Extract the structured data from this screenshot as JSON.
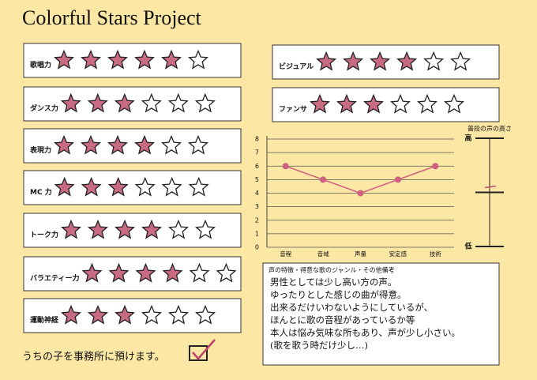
{
  "title": "Colorful Stars Project",
  "ratings_max": 6,
  "ratings": [
    {
      "label": "歌唱力",
      "value": 5
    },
    {
      "label": "ダンス力",
      "value": 3
    },
    {
      "label": "表現力",
      "value": 4
    },
    {
      "label": "MC 力",
      "value": 3
    },
    {
      "label": "トーク力",
      "value": 4
    },
    {
      "label": "バラエティー力",
      "value": 4
    },
    {
      "label": "運動神経",
      "value": 3
    },
    {
      "label": "ビジュアル",
      "value": 4
    },
    {
      "label": "ファンサ",
      "value": 3
    }
  ],
  "chart_data": {
    "type": "line",
    "categories": [
      "音程",
      "音域",
      "声量",
      "安定感",
      "技術"
    ],
    "values": [
      6,
      5,
      4,
      5,
      6
    ],
    "color": "#d0607f",
    "ylim": [
      0,
      8
    ],
    "yticks": [
      0,
      1,
      2,
      3,
      4,
      5,
      6,
      7,
      8
    ],
    "grid": true
  },
  "voice_pitch": {
    "title": "普段の声の高さ",
    "high": "高",
    "low": "低",
    "lim": [
      0,
      100
    ],
    "value": 50
  },
  "notes": {
    "title": "声の特徴・得意な歌のジャンル・その他備考",
    "lines": [
      "男性としては少し高い方の声。",
      "ゆったりとした感じの曲が得意。",
      "出来るだけいわないようにしているが、",
      "ほんとに歌の音程があっているか等",
      "本人は悩み気味な所もあり、声が少し小さい。",
      "(歌を歌う時だけ少し…)"
    ]
  },
  "agency": {
    "label": "うちの子を事務所に預けます。",
    "checked": true
  }
}
